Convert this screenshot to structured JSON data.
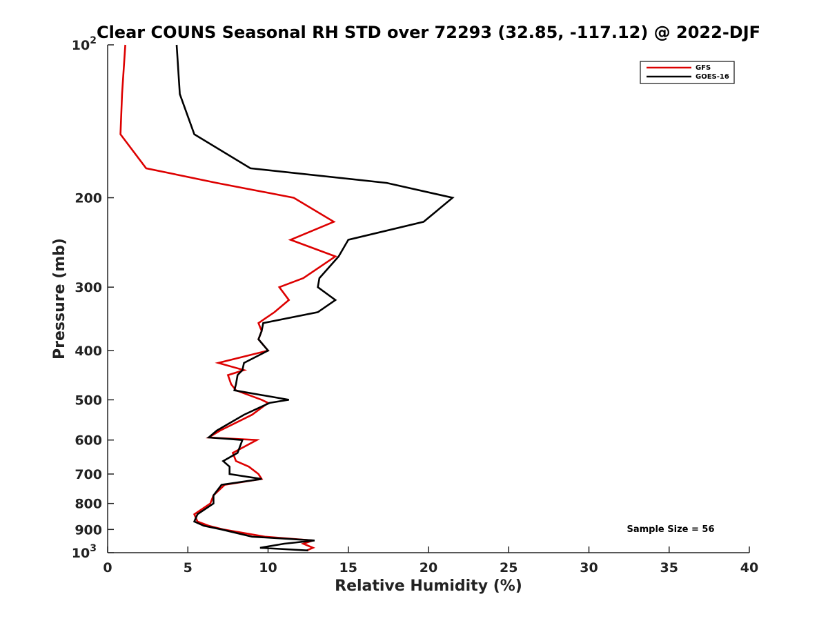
{
  "chart_data": {
    "type": "line",
    "title": "Clear COUNS Seasonal RH STD over 72293 (32.85, -117.12) @ 2022-DJF",
    "xlabel": "Relative Humidity (%)",
    "ylabel": "Pressure (mb)",
    "xlim": [
      0,
      40
    ],
    "ylim": [
      100,
      1000
    ],
    "yscale": "log",
    "y_reversed": true,
    "x_ticks": [
      "0",
      "5",
      "10",
      "15",
      "20",
      "25",
      "30",
      "35",
      "40"
    ],
    "y_ticks": [
      {
        "value": 100,
        "base": "10",
        "exp": "2"
      },
      {
        "value": 200,
        "label": "200"
      },
      {
        "value": 300,
        "label": "300"
      },
      {
        "value": 400,
        "label": "400"
      },
      {
        "value": 500,
        "label": "500"
      },
      {
        "value": 600,
        "label": "600"
      },
      {
        "value": 700,
        "label": "700"
      },
      {
        "value": 800,
        "label": "800"
      },
      {
        "value": 900,
        "label": "900"
      },
      {
        "value": 1000,
        "base": "10",
        "exp": "3"
      }
    ],
    "legend_position": "top-right",
    "annotation": "Sample Size = 56",
    "series": [
      {
        "name": "GFS",
        "color": "#dd0000",
        "points": [
          [
            1.1,
            100
          ],
          [
            0.9,
            125
          ],
          [
            0.8,
            150
          ],
          [
            2.4,
            175
          ],
          [
            6.8,
            187
          ],
          [
            11.6,
            200
          ],
          [
            14.1,
            223
          ],
          [
            11.4,
            242
          ],
          [
            14.2,
            261
          ],
          [
            12.2,
            288
          ],
          [
            10.7,
            300
          ],
          [
            11.3,
            318
          ],
          [
            10.4,
            336
          ],
          [
            9.4,
            353
          ],
          [
            9.6,
            366
          ],
          [
            9.4,
            380
          ],
          [
            10.0,
            400
          ],
          [
            6.9,
            423
          ],
          [
            8.5,
            437
          ],
          [
            7.5,
            447
          ],
          [
            7.7,
            466
          ],
          [
            8.0,
            479
          ],
          [
            9.6,
            500
          ],
          [
            10.0,
            507
          ],
          [
            9.0,
            535
          ],
          [
            7.0,
            575
          ],
          [
            6.3,
            593
          ],
          [
            9.3,
            600
          ],
          [
            7.8,
            636
          ],
          [
            8.0,
            660
          ],
          [
            8.8,
            677
          ],
          [
            9.4,
            700
          ],
          [
            9.6,
            716
          ],
          [
            7.3,
            735
          ],
          [
            6.6,
            771
          ],
          [
            6.4,
            800
          ],
          [
            5.4,
            840
          ],
          [
            5.6,
            868
          ],
          [
            6.3,
            885
          ],
          [
            7.2,
            900
          ],
          [
            9.8,
            930
          ],
          [
            12.8,
            946
          ],
          [
            12.2,
            960
          ],
          [
            12.8,
            978
          ],
          [
            12.4,
            990
          ]
        ]
      },
      {
        "name": "GOES-16",
        "color": "#000000",
        "points": [
          [
            4.3,
            100
          ],
          [
            4.5,
            125
          ],
          [
            5.4,
            150
          ],
          [
            8.9,
            175
          ],
          [
            17.4,
            187
          ],
          [
            21.5,
            200
          ],
          [
            19.7,
            223
          ],
          [
            15.0,
            242
          ],
          [
            14.4,
            261
          ],
          [
            13.2,
            288
          ],
          [
            13.1,
            300
          ],
          [
            14.2,
            318
          ],
          [
            13.1,
            336
          ],
          [
            9.7,
            353
          ],
          [
            9.6,
            366
          ],
          [
            9.4,
            380
          ],
          [
            10.0,
            400
          ],
          [
            8.5,
            423
          ],
          [
            8.4,
            437
          ],
          [
            8.1,
            447
          ],
          [
            8.0,
            466
          ],
          [
            7.9,
            479
          ],
          [
            11.3,
            500
          ],
          [
            10.1,
            507
          ],
          [
            8.5,
            535
          ],
          [
            6.8,
            575
          ],
          [
            6.3,
            593
          ],
          [
            8.4,
            600
          ],
          [
            8.1,
            636
          ],
          [
            7.2,
            660
          ],
          [
            7.6,
            677
          ],
          [
            7.6,
            700
          ],
          [
            9.6,
            716
          ],
          [
            7.1,
            735
          ],
          [
            6.6,
            771
          ],
          [
            6.6,
            800
          ],
          [
            5.6,
            840
          ],
          [
            5.4,
            868
          ],
          [
            6.0,
            885
          ],
          [
            7.1,
            900
          ],
          [
            9.0,
            930
          ],
          [
            12.9,
            946
          ],
          [
            11.0,
            960
          ],
          [
            9.5,
            978
          ],
          [
            12.5,
            990
          ]
        ]
      }
    ]
  }
}
